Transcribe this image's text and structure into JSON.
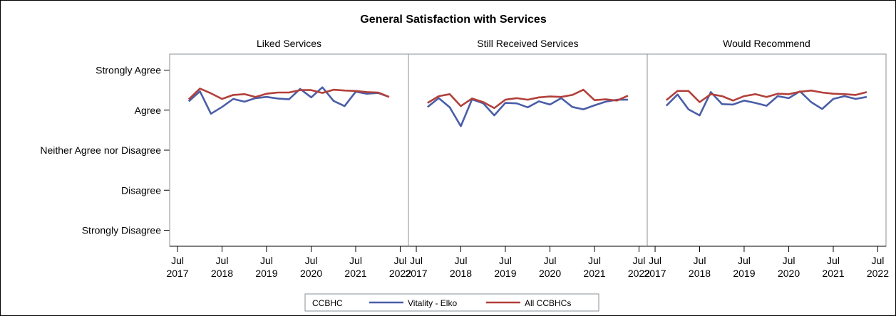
{
  "chart_data": {
    "type": "line",
    "title": "General Satisfaction with Services",
    "y_categories": [
      "Strongly Agree",
      "Agree",
      "Neither Agree nor Disagree",
      "Disagree",
      "Strongly Disagree"
    ],
    "y_values_for_categories": [
      5,
      4,
      3,
      2,
      1
    ],
    "ylim": [
      0.6,
      5.4
    ],
    "xlim": [
      "2017-05-15",
      "2022-08-20"
    ],
    "x_ticks": [
      {
        "date": "2017-07-01",
        "month": "Jul",
        "year": "2017"
      },
      {
        "date": "2018-07-01",
        "month": "Jul",
        "year": "2018"
      },
      {
        "date": "2019-07-01",
        "month": "Jul",
        "year": "2019"
      },
      {
        "date": "2020-07-01",
        "month": "Jul",
        "year": "2020"
      },
      {
        "date": "2021-07-01",
        "month": "Jul",
        "year": "2021"
      },
      {
        "date": "2022-07-01",
        "month": "Jul",
        "year": "2022"
      }
    ],
    "grid": false,
    "legend": {
      "title": "CCBHC",
      "placement": "bottom",
      "entries": [
        {
          "name": "Vitality - Elko",
          "color": "#4a5ea8"
        },
        {
          "name": "All CCBHCs",
          "color": "#b2403a"
        }
      ]
    },
    "x": [
      "2017-10-01",
      "2018-01-01",
      "2018-04-01",
      "2018-07-01",
      "2018-10-01",
      "2019-01-01",
      "2019-04-01",
      "2019-07-01",
      "2019-10-01",
      "2020-01-01",
      "2020-04-01",
      "2020-07-01",
      "2020-10-01",
      "2021-01-01",
      "2021-04-01",
      "2021-07-01",
      "2021-10-01",
      "2022-01-01",
      "2022-04-01"
    ],
    "panels": [
      {
        "title": "Liked Services",
        "series": [
          {
            "name": "Vitality - Elko",
            "values": [
              4.22,
              4.47,
              3.91,
              4.08,
              4.28,
              4.21,
              4.3,
              4.33,
              4.29,
              4.27,
              4.53,
              4.32,
              4.57,
              4.23,
              4.1,
              4.46,
              4.41,
              4.43,
              4.33
            ]
          },
          {
            "name": "All CCBHCs",
            "values": [
              4.27,
              4.54,
              4.42,
              4.28,
              4.38,
              4.4,
              4.33,
              4.41,
              4.44,
              4.44,
              4.5,
              4.5,
              4.43,
              4.51,
              4.49,
              4.48,
              4.45,
              4.44,
              4.33
            ]
          }
        ]
      },
      {
        "title": "Still Received Services",
        "series": [
          {
            "name": "Vitality - Elko",
            "values": [
              4.08,
              4.3,
              4.07,
              3.6,
              4.27,
              4.17,
              3.87,
              4.18,
              4.17,
              4.07,
              4.22,
              4.14,
              4.3,
              4.08,
              4.02,
              4.12,
              4.21,
              4.26,
              4.26
            ]
          },
          {
            "name": "All CCBHCs",
            "values": [
              4.18,
              4.35,
              4.4,
              4.1,
              4.29,
              4.2,
              4.05,
              4.26,
              4.3,
              4.26,
              4.32,
              4.34,
              4.33,
              4.38,
              4.51,
              4.25,
              4.27,
              4.24,
              4.36
            ]
          }
        ]
      },
      {
        "title": "Would Recommend",
        "series": [
          {
            "name": "Vitality - Elko",
            "values": [
              4.11,
              4.39,
              4.02,
              3.87,
              4.45,
              4.15,
              4.14,
              4.24,
              4.18,
              4.11,
              4.35,
              4.3,
              4.47,
              4.2,
              4.03,
              4.28,
              4.35,
              4.28,
              4.33
            ]
          },
          {
            "name": "All CCBHCs",
            "values": [
              4.25,
              4.48,
              4.48,
              4.2,
              4.4,
              4.35,
              4.24,
              4.35,
              4.4,
              4.33,
              4.41,
              4.4,
              4.46,
              4.49,
              4.44,
              4.41,
              4.4,
              4.38,
              4.45
            ]
          }
        ]
      }
    ]
  }
}
